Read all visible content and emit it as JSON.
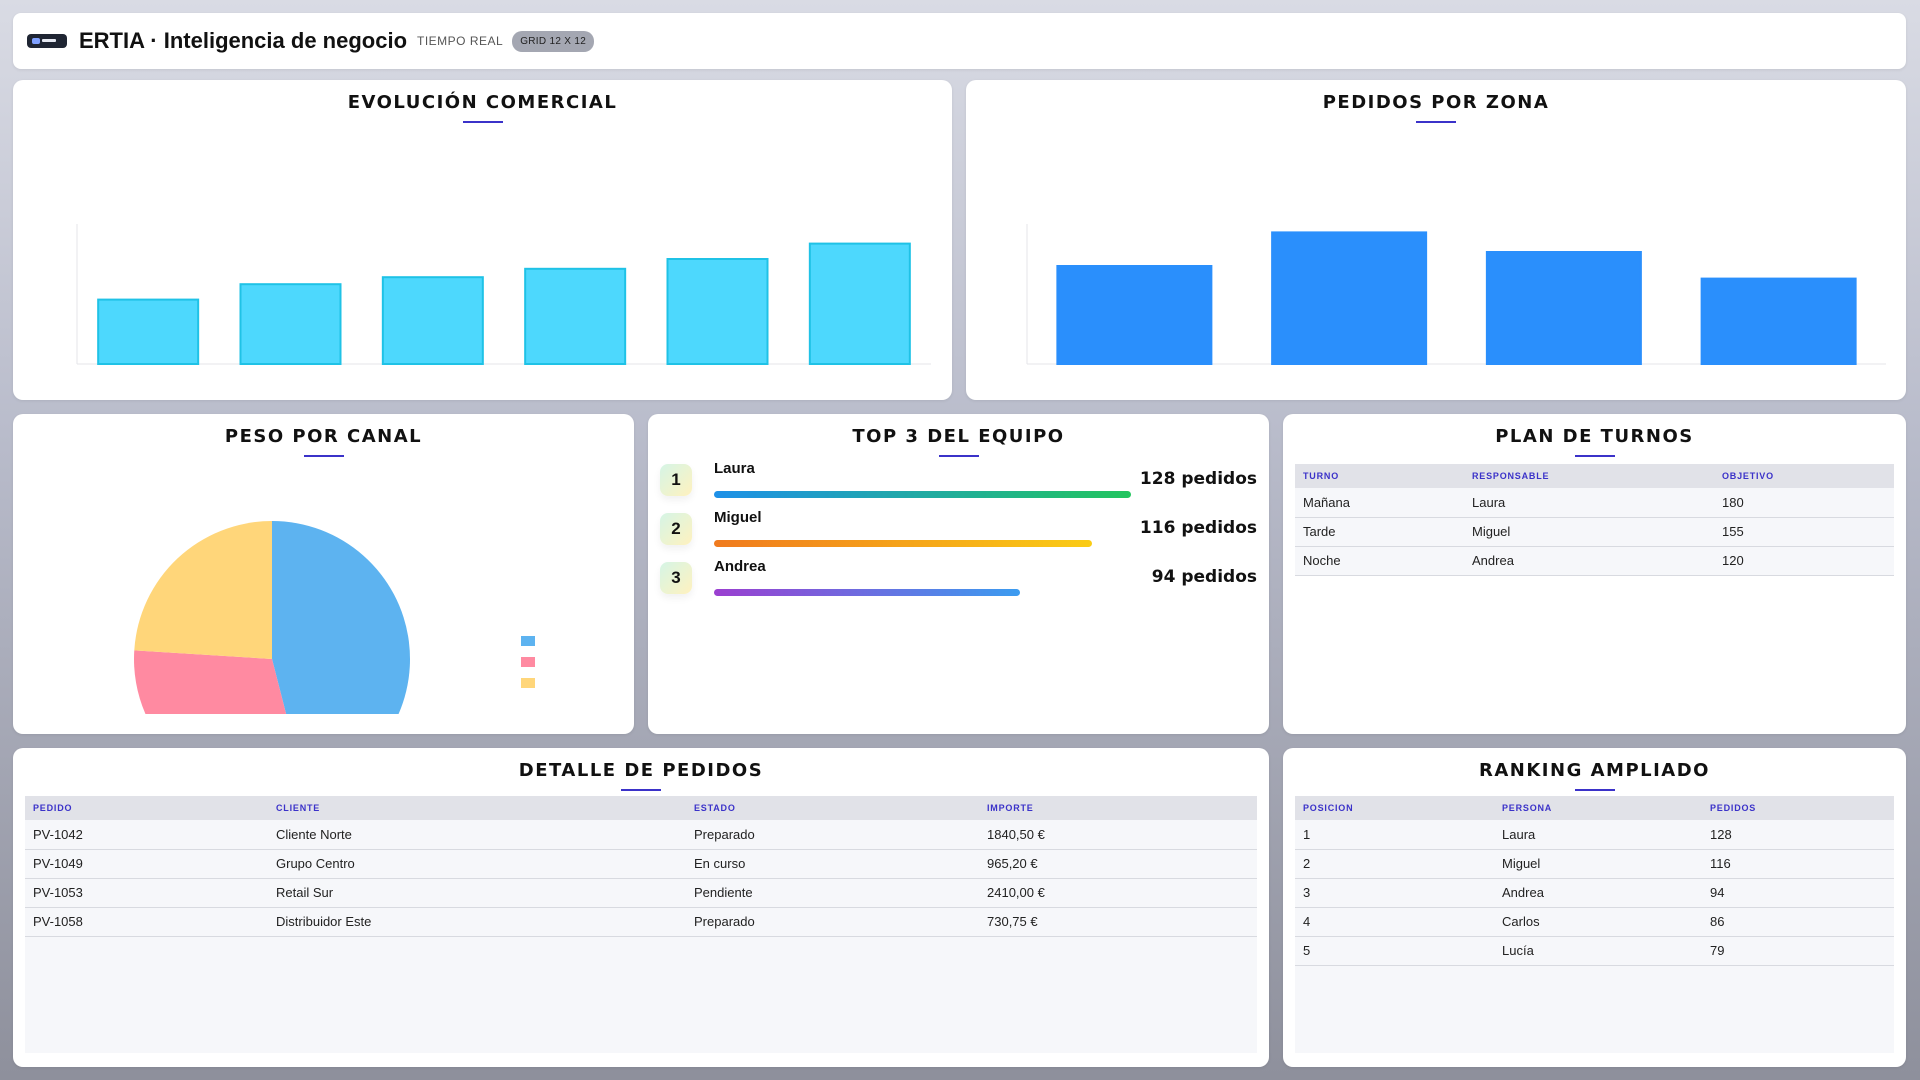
{
  "header": {
    "title": "ERTIA · Inteligencia de negocio",
    "live_label": "TIEMPO REAL",
    "grid_badge": "GRID 12 X 12"
  },
  "panels": {
    "evolucion": {
      "title": "EVOLUCIÓN COMERCIAL"
    },
    "zona": {
      "title": "PEDIDOS POR ZONA"
    },
    "canal": {
      "title": "PESO POR CANAL"
    },
    "top3": {
      "title": "TOP 3 DEL EQUIPO"
    },
    "turnos": {
      "title": "PLAN DE TURNOS"
    },
    "detalle": {
      "title": "DETALLE DE PEDIDOS"
    },
    "ranking": {
      "title": "RANKING AMPLIADO"
    }
  },
  "chart_data": [
    {
      "type": "bar",
      "categories": [
        "",
        "",
        "",
        "",
        "",
        ""
      ],
      "values": [
        46,
        57,
        62,
        68,
        75,
        86
      ],
      "ylim": [
        0,
        100
      ],
      "color": "#4dd8fd",
      "border_color": "#1fc2e6"
    },
    {
      "type": "bar",
      "categories": [
        "",
        "",
        "",
        ""
      ],
      "values": [
        70,
        94,
        80,
        61
      ],
      "ylim": [
        0,
        100
      ],
      "color": "#2a8ffc"
    },
    {
      "type": "pie",
      "slices": [
        {
          "value": 46,
          "color": "#5db3f0"
        },
        {
          "value": 30,
          "color": "#ff8aa1"
        },
        {
          "value": 24,
          "color": "#ffd67a"
        }
      ]
    }
  ],
  "top3": [
    {
      "rank": "1",
      "name": "Laura",
      "value": "128 pedidos",
      "count": 128,
      "gradient": [
        "#1e90e8",
        "#22c55e"
      ]
    },
    {
      "rank": "2",
      "name": "Miguel",
      "value": "116 pedidos",
      "count": 116,
      "gradient": [
        "#f07a1e",
        "#facc15"
      ]
    },
    {
      "rank": "3",
      "name": "Andrea",
      "value": "94 pedidos",
      "count": 94,
      "gradient": [
        "#9b3fd0",
        "#3b9cf0"
      ]
    }
  ],
  "turnos": {
    "headers": [
      "TURNO",
      "RESPONSABLE",
      "OBJETIVO"
    ],
    "rows": [
      [
        "Mañana",
        "Laura",
        "180"
      ],
      [
        "Tarde",
        "Miguel",
        "155"
      ],
      [
        "Noche",
        "Andrea",
        "120"
      ]
    ]
  },
  "detalle": {
    "headers": [
      "PEDIDO",
      "CLIENTE",
      "ESTADO",
      "IMPORTE"
    ],
    "rows": [
      [
        "PV-1042",
        "Cliente Norte",
        "Preparado",
        "1840,50 €"
      ],
      [
        "PV-1049",
        "Grupo Centro",
        "En curso",
        "965,20 €"
      ],
      [
        "PV-1053",
        "Retail Sur",
        "Pendiente",
        "2410,00 €"
      ],
      [
        "PV-1058",
        "Distribuidor Este",
        "Preparado",
        "730,75 €"
      ]
    ]
  },
  "ranking": {
    "headers": [
      "POSICION",
      "PERSONA",
      "PEDIDOS"
    ],
    "rows": [
      [
        "1",
        "Laura",
        "128"
      ],
      [
        "2",
        "Miguel",
        "116"
      ],
      [
        "3",
        "Andrea",
        "94"
      ],
      [
        "4",
        "Carlos",
        "86"
      ],
      [
        "5",
        "Lucía",
        "79"
      ]
    ]
  }
}
